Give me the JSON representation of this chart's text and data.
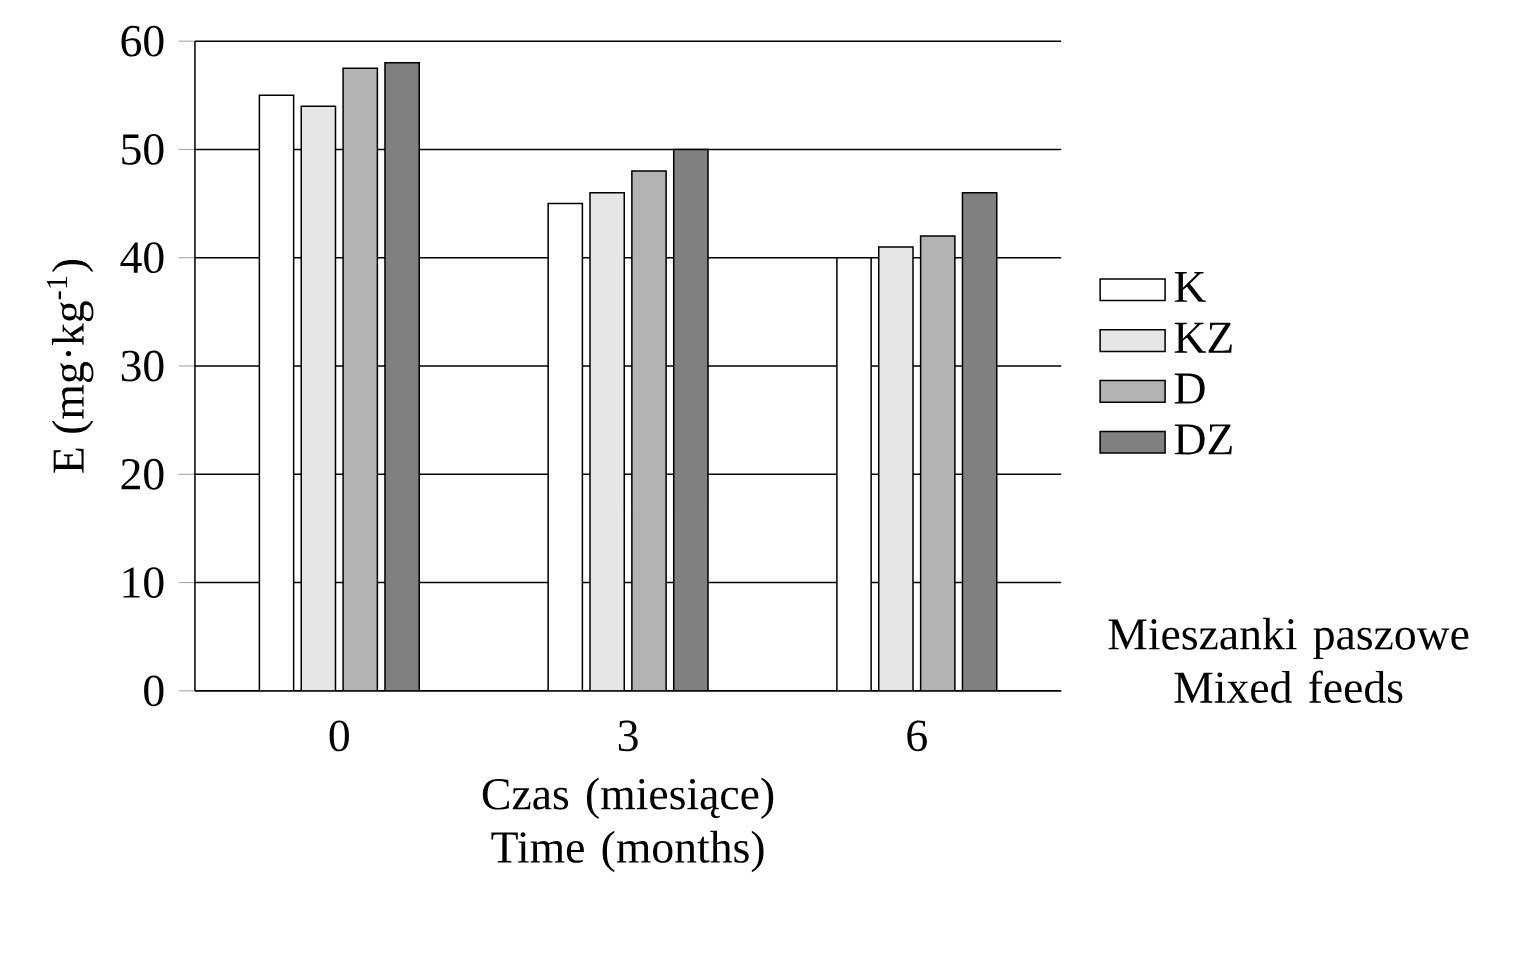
{
  "chart_data": {
    "type": "bar",
    "xlabel": "Czas (miesiące) Time (months)",
    "ylabel": "E (mg·kg$^{-1}$)",
    "legend_title": "Mieszanki paszowe Mixed feeds",
    "categories": [
      "0",
      "3",
      "6"
    ],
    "series": [
      {
        "name": "K",
        "color": "#ffffff",
        "values": [
          55,
          45,
          40
        ]
      },
      {
        "name": "KZ",
        "color": "#e6e6e6",
        "values": [
          54,
          46,
          41
        ]
      },
      {
        "name": "D",
        "color": "#b3b3b3",
        "values": [
          57.5,
          48,
          42
        ]
      },
      {
        "name": "DZ",
        "color": "#808080",
        "values": [
          58,
          50,
          46
        ]
      }
    ],
    "ylim": [
      0,
      60
    ],
    "yticks": [
      0,
      10,
      20,
      30,
      40,
      50,
      60
    ],
    "grid": "y",
    "legend": "right"
  }
}
